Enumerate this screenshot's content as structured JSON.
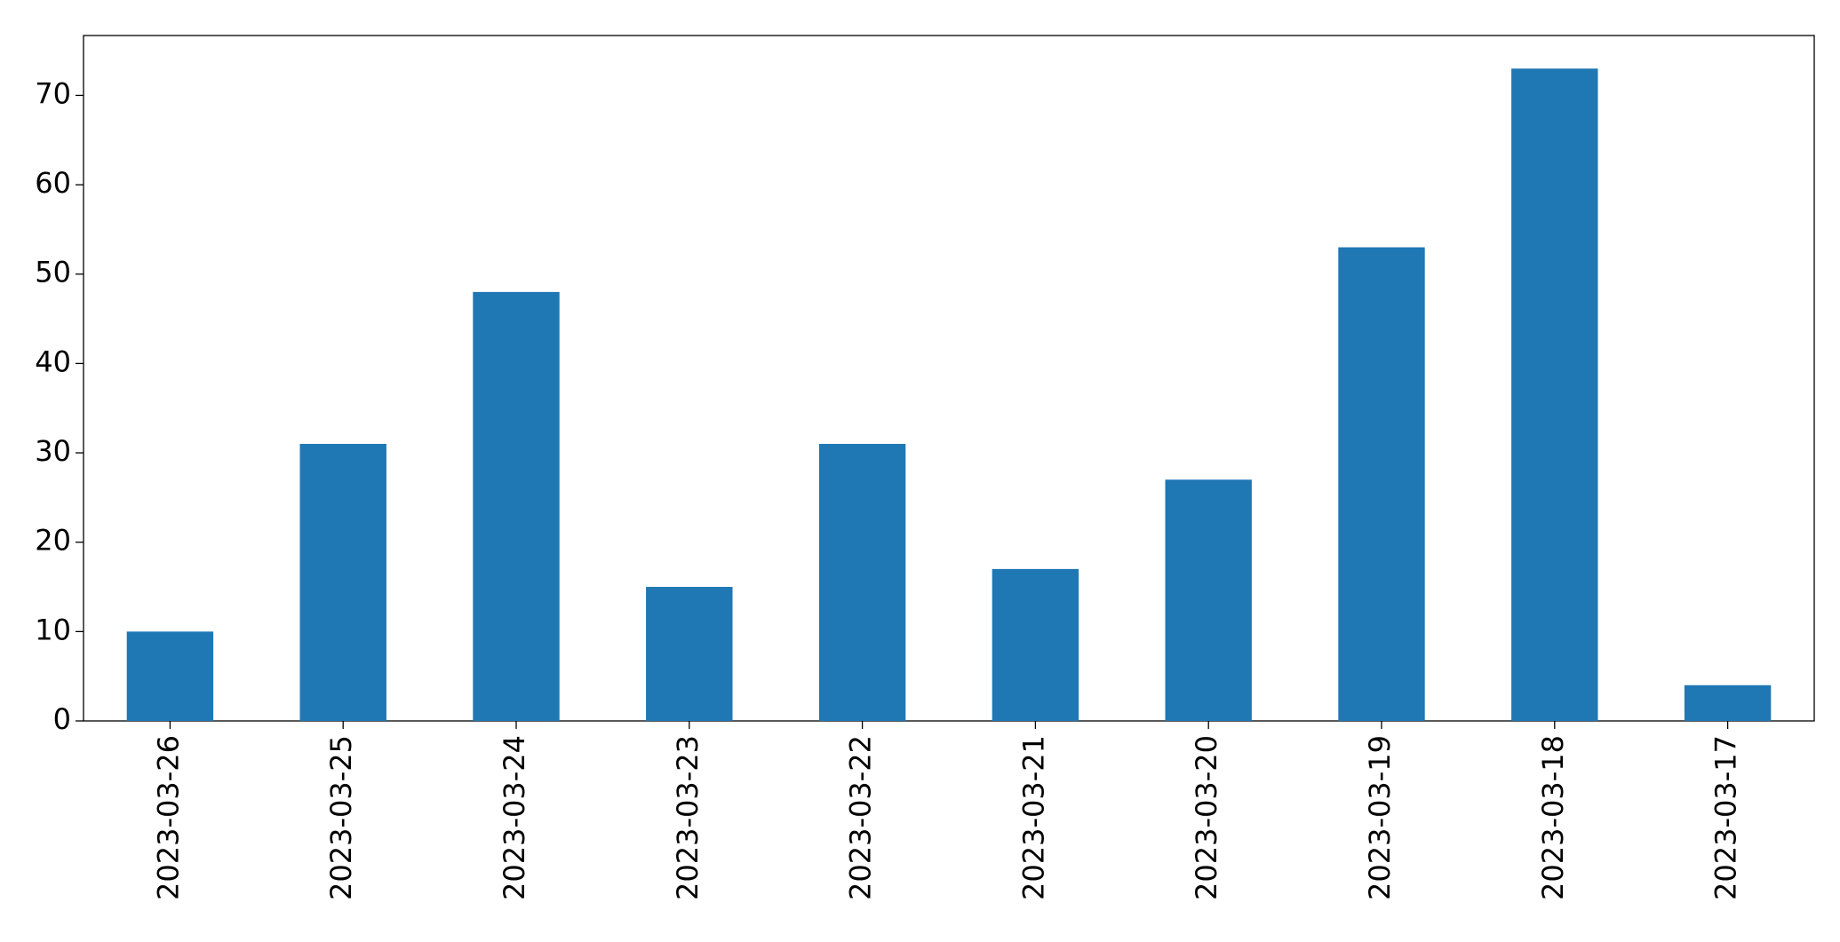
{
  "chart_data": {
    "type": "bar",
    "categories": [
      "2023-03-26",
      "2023-03-25",
      "2023-03-24",
      "2023-03-23",
      "2023-03-22",
      "2023-03-21",
      "2023-03-20",
      "2023-03-19",
      "2023-03-18",
      "2023-03-17"
    ],
    "values": [
      10,
      31,
      48,
      15,
      31,
      17,
      27,
      53,
      73,
      4
    ],
    "color": "#1f77b4",
    "ylim": [
      0,
      76.7
    ],
    "yticks": [
      0,
      10,
      20,
      30,
      40,
      50,
      60,
      70
    ],
    "grid": false
  }
}
